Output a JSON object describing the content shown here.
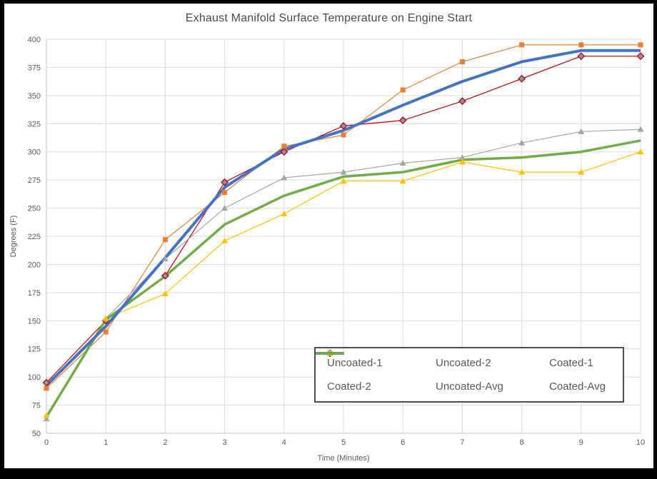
{
  "title": "Exhaust Manifold Surface Temperature on Engine Start",
  "chart_data": {
    "type": "line",
    "title": "Exhaust Manifold Surface Temperature on Engine Start",
    "xlabel": "Time (Minutes)",
    "ylabel": "Degrees (F)",
    "xlim": [
      0,
      10
    ],
    "ylim": [
      50,
      400
    ],
    "grid": true,
    "legend_position": "inside-bottom-right",
    "x": [
      0,
      1,
      2,
      3,
      4,
      5,
      6,
      7,
      8,
      9,
      10
    ],
    "xticks": [
      0,
      1,
      2,
      3,
      4,
      5,
      6,
      7,
      8,
      9,
      10
    ],
    "yticks": [
      50,
      75,
      100,
      125,
      150,
      175,
      200,
      225,
      250,
      275,
      300,
      325,
      350,
      375,
      400
    ],
    "series": [
      {
        "name": "Uncoated-1",
        "color": "#C00000",
        "marker": "diamond",
        "marker_fill": "#8496B0",
        "line_width": 1.2,
        "values": [
          95,
          150,
          190,
          273,
          300,
          323,
          328,
          345,
          365,
          385,
          385
        ]
      },
      {
        "name": "Uncoated-2",
        "color": "#ED7D31",
        "marker": "square",
        "marker_fill": "#ED7D31",
        "line_width": 1.2,
        "values": [
          90,
          140,
          222,
          264,
          305,
          315,
          355,
          380,
          395,
          395,
          395
        ]
      },
      {
        "name": "Coated-1",
        "color": "#A5A5A5",
        "marker": "triangle",
        "marker_fill": "#A5A5A5",
        "line_width": 1.2,
        "values": [
          63,
          152,
          205,
          250,
          277,
          282,
          290,
          295,
          308,
          318,
          320
        ]
      },
      {
        "name": "Coated-2",
        "color": "#FFC000",
        "marker": "triangle",
        "marker_fill": "#FFC000",
        "line_width": 1.2,
        "values": [
          66,
          152,
          174,
          221,
          245,
          274,
          274,
          291,
          282,
          282,
          300
        ]
      },
      {
        "name": "Uncoated-Avg",
        "color": "#4472C4",
        "marker": "none",
        "marker_fill": "none",
        "line_width": 4,
        "values": [
          92.5,
          145,
          206,
          268.5,
          302.5,
          319,
          341.5,
          362.5,
          380,
          390,
          390
        ]
      },
      {
        "name": "Coated-Avg",
        "color": "#70AD47",
        "marker": "none",
        "marker_fill": "none",
        "line_width": 3.5,
        "values": [
          64.5,
          151,
          189.5,
          235.5,
          261,
          278,
          282,
          293,
          295,
          300,
          310
        ]
      }
    ]
  },
  "style_colors": {
    "gridline": "#D9D9D9",
    "axis_line": "#BFBFBF",
    "tick_label": "#595959",
    "title_text": "#4a4a4a",
    "legend_border": "#4d4d4d",
    "frame": "#000000"
  }
}
